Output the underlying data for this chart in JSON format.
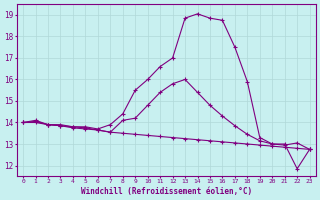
{
  "x": [
    0,
    1,
    2,
    3,
    4,
    5,
    6,
    7,
    8,
    9,
    10,
    11,
    12,
    13,
    14,
    15,
    16,
    17,
    18,
    19,
    20,
    21,
    22,
    23
  ],
  "curve1": [
    14.0,
    14.1,
    13.9,
    13.9,
    13.8,
    13.8,
    13.7,
    13.9,
    14.4,
    15.5,
    16.0,
    16.6,
    17.0,
    18.85,
    19.05,
    18.85,
    18.75,
    17.5,
    15.9,
    13.3,
    13.0,
    13.0,
    11.85,
    12.75
  ],
  "curve2": [
    14.0,
    14.05,
    13.9,
    13.85,
    13.8,
    13.75,
    13.65,
    13.55,
    14.1,
    14.2,
    14.8,
    15.4,
    15.8,
    16.0,
    15.4,
    14.8,
    14.3,
    13.85,
    13.45,
    13.15,
    13.0,
    12.95,
    13.05,
    12.75
  ],
  "curve3": [
    14.0,
    14.0,
    13.9,
    13.85,
    13.75,
    13.7,
    13.65,
    13.55,
    13.5,
    13.45,
    13.4,
    13.35,
    13.3,
    13.25,
    13.2,
    13.15,
    13.1,
    13.05,
    13.0,
    12.95,
    12.9,
    12.85,
    12.8,
    12.75
  ],
  "line_color": "#800080",
  "bg_color": "#c8f0f0",
  "xlabel": "Windchill (Refroidissement éolien,°C)",
  "yticks": [
    12,
    13,
    14,
    15,
    16,
    17,
    18,
    19
  ],
  "xticks": [
    0,
    1,
    2,
    3,
    4,
    5,
    6,
    7,
    8,
    9,
    10,
    11,
    12,
    13,
    14,
    15,
    16,
    17,
    18,
    19,
    20,
    21,
    22,
    23
  ],
  "ylim": [
    11.5,
    19.5
  ],
  "xlim": [
    -0.5,
    23.5
  ],
  "grid_color": "#b0d8d8",
  "tick_color": "#800080",
  "marker": "+"
}
